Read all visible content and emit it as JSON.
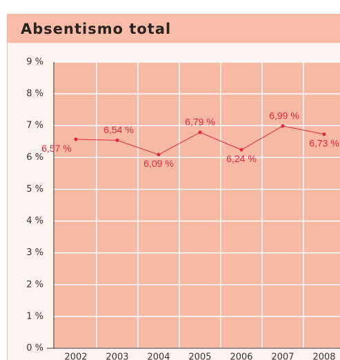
{
  "chart_data": {
    "type": "line",
    "title": "Absentismo total",
    "categories": [
      "2002",
      "2003",
      "2004",
      "2005",
      "2006",
      "2007",
      "2008"
    ],
    "series": [
      {
        "color": "#e2283b",
        "values": [
          6.57,
          6.54,
          6.09,
          6.79,
          6.24,
          6.99,
          6.73
        ],
        "value_labels": [
          "6,57 %",
          "6,54 %",
          "6,09 %",
          "6,79 %",
          "6,24 %",
          "6,99 %",
          "6,73 %"
        ]
      }
    ],
    "ylim": [
      0,
      9
    ],
    "yticks": [
      {
        "value": 0,
        "label": "0 %"
      },
      {
        "value": 1,
        "label": "1 %"
      },
      {
        "value": 2,
        "label": "2 %"
      },
      {
        "value": 3,
        "label": "3 %"
      },
      {
        "value": 4,
        "label": "4 %"
      },
      {
        "value": 5,
        "label": "5 %"
      },
      {
        "value": 6,
        "label": "6 %"
      },
      {
        "value": 7,
        "label": "7 %"
      },
      {
        "value": 8,
        "label": "8 %"
      },
      {
        "value": 9,
        "label": "9 %"
      }
    ],
    "grid": true
  }
}
